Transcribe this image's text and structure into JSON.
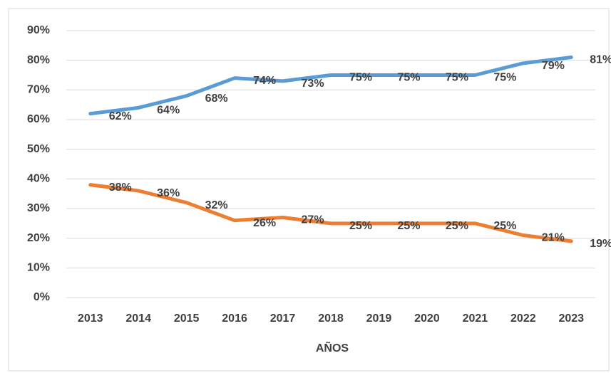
{
  "chart_data": {
    "type": "line",
    "x_label": "AÑOS",
    "categories": [
      "2013",
      "2014",
      "2015",
      "2016",
      "2017",
      "2018",
      "2019",
      "2020",
      "2021",
      "2022",
      "2023"
    ],
    "series": [
      {
        "color": "#5b9bd5",
        "values": [
          62,
          64,
          68,
          74,
          73,
          75,
          75,
          75,
          75,
          79,
          81
        ],
        "value_labels": [
          "62%",
          "64%",
          "68%",
          "74%",
          "73%",
          "75%",
          "75%",
          "75%",
          "75%",
          "79%",
          "81%"
        ]
      },
      {
        "color": "#ed7d31",
        "values": [
          38,
          36,
          32,
          26,
          27,
          25,
          25,
          25,
          25,
          21,
          19
        ],
        "value_labels": [
          "38%",
          "36%",
          "32%",
          "26%",
          "27%",
          "25%",
          "25%",
          "25%",
          "25%",
          "21%",
          "19%"
        ]
      }
    ],
    "ylim": [
      0,
      90
    ],
    "yticks": [
      {
        "value": 0,
        "label": "0%"
      },
      {
        "value": 10,
        "label": "10%"
      },
      {
        "value": 20,
        "label": "20%"
      },
      {
        "value": 30,
        "label": "30%"
      },
      {
        "value": 40,
        "label": "40%"
      },
      {
        "value": 50,
        "label": "50%"
      },
      {
        "value": 60,
        "label": "60%"
      },
      {
        "value": 70,
        "label": "70%"
      },
      {
        "value": 80,
        "label": "80%"
      },
      {
        "value": 90,
        "label": "90%"
      }
    ],
    "grid": true
  }
}
